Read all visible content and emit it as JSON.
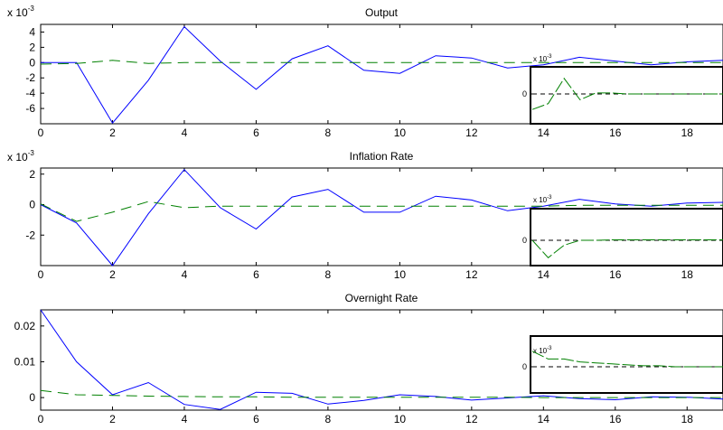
{
  "colors": {
    "series_solid": "#0000ff",
    "series_dashed": "#008000",
    "inset_line": "#008000",
    "inset_zero": "#000000",
    "axes": "#000000"
  },
  "chart_data": [
    {
      "type": "line",
      "title": "Output",
      "exponent_base": "x 10",
      "exponent_power": "-3",
      "xlim": [
        0,
        19
      ],
      "ylim": [
        -8,
        5
      ],
      "x": [
        0,
        1,
        2,
        3,
        4,
        5,
        6,
        7,
        8,
        9,
        10,
        11,
        12,
        13,
        14,
        15,
        16,
        17,
        18,
        19
      ],
      "x_ticks": [
        0,
        2,
        4,
        6,
        8,
        10,
        12,
        14,
        16,
        18
      ],
      "y_ticks": [
        -6,
        -4,
        -2,
        0,
        2,
        4
      ],
      "series": [
        {
          "style": "solid",
          "values": [
            0,
            0,
            -7.9,
            -2.3,
            4.7,
            0.2,
            -3.5,
            0.5,
            2.2,
            -1.0,
            -1.4,
            0.9,
            0.6,
            -0.7,
            -0.3,
            0.7,
            0.2,
            -0.3,
            0.1,
            0.3
          ]
        },
        {
          "style": "dashed",
          "values": [
            -0.2,
            -0.1,
            0.3,
            -0.1,
            0,
            0,
            0,
            0,
            0,
            0,
            0,
            0,
            0,
            0,
            0,
            0,
            0,
            0,
            0,
            0
          ]
        }
      ],
      "inset": {
        "exponent_base": "x 10",
        "exponent_power": "-3",
        "y_tick_label": "0",
        "values": [
          -1.6,
          -1.0,
          1.6,
          -0.6,
          0.1,
          0.1,
          0.0,
          0.0,
          0.0,
          0.0,
          0.0,
          0.0,
          0.0
        ],
        "ylim": [
          -2.5,
          3.0
        ]
      }
    },
    {
      "type": "line",
      "title": "Inflation Rate",
      "exponent_base": "x 10",
      "exponent_power": "-3",
      "xlim": [
        0,
        19
      ],
      "ylim": [
        -4,
        2.4
      ],
      "x": [
        0,
        1,
        2,
        3,
        4,
        5,
        6,
        7,
        8,
        9,
        10,
        11,
        12,
        13,
        14,
        15,
        16,
        17,
        18,
        19
      ],
      "x_ticks": [
        0,
        2,
        4,
        6,
        8,
        10,
        12,
        14,
        16,
        18
      ],
      "y_ticks": [
        -2,
        0,
        2
      ],
      "series": [
        {
          "style": "solid",
          "values": [
            0,
            -1.2,
            -4.0,
            -0.6,
            2.3,
            -0.2,
            -1.6,
            0.5,
            1.0,
            -0.5,
            -0.5,
            0.55,
            0.3,
            -0.4,
            -0.1,
            0.35,
            0.05,
            -0.1,
            0.1,
            0.15
          ]
        },
        {
          "style": "dashed",
          "values": [
            0.05,
            -1.1,
            -0.5,
            0.2,
            -0.2,
            -0.1,
            -0.1,
            -0.1,
            -0.1,
            -0.1,
            -0.1,
            -0.1,
            -0.1,
            -0.1,
            -0.1,
            -0.05,
            -0.05,
            -0.05,
            -0.05,
            -0.05
          ]
        }
      ],
      "inset": {
        "exponent_base": "x 10",
        "exponent_power": "-3",
        "y_tick_label": "0",
        "values": [
          0.0,
          -1.8,
          -0.5,
          0.0,
          0.0,
          0.05,
          0.05,
          0.05,
          0.05,
          0.05,
          0.05,
          0.05,
          0.05
        ],
        "ylim": [
          -2.5,
          3.0
        ]
      }
    },
    {
      "type": "line",
      "title": "Overnight Rate",
      "xlim": [
        0,
        19
      ],
      "ylim": [
        -0.0035,
        0.0245
      ],
      "x": [
        0,
        1,
        2,
        3,
        4,
        5,
        6,
        7,
        8,
        9,
        10,
        11,
        12,
        13,
        14,
        15,
        16,
        17,
        18,
        19
      ],
      "x_ticks": [
        0,
        2,
        4,
        6,
        8,
        10,
        12,
        14,
        16,
        18
      ],
      "y_ticks": [
        0,
        0.01,
        0.02
      ],
      "y_tick_labels": [
        "0",
        "0.01",
        "0.02"
      ],
      "series": [
        {
          "style": "solid",
          "values": [
            0.0245,
            0.01,
            0.0008,
            0.0042,
            -0.0019,
            -0.0033,
            0.0015,
            0.0012,
            -0.0018,
            -0.0008,
            0.0008,
            0.0003,
            -0.0007,
            -0.0001,
            0.0005,
            -0.0003,
            -0.0006,
            0.0002,
            0.0001,
            -0.0004
          ]
        },
        {
          "style": "dashed",
          "values": [
            0.002,
            0.0008,
            0.0006,
            0.0004,
            0.0003,
            0.0002,
            0.0002,
            0.0001,
            0.0001,
            0.0001,
            0.0001,
            0.0001,
            0.0001,
            0.0001,
            0.0,
            0.0,
            0.0,
            0.0,
            0.0,
            0.0
          ]
        }
      ],
      "inset": {
        "exponent_base": "x 10",
        "exponent_power": "-3",
        "y_tick_label": "0",
        "values": [
          1.6,
          0.8,
          0.8,
          0.5,
          0.4,
          0.3,
          0.2,
          0.1,
          0.1,
          0.0,
          0.0,
          0.0,
          0.0
        ],
        "ylim": [
          -2.5,
          3.0
        ]
      }
    }
  ]
}
